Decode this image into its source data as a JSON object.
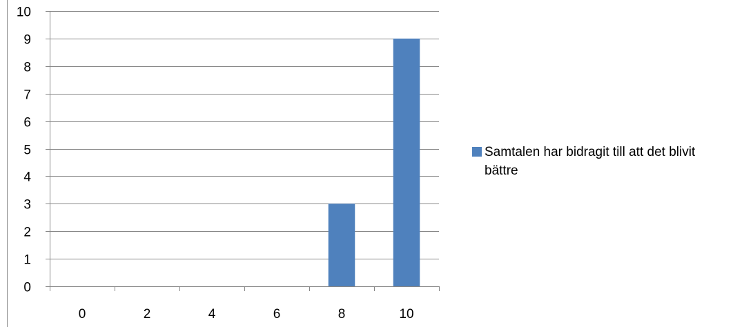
{
  "chart_data": {
    "type": "bar",
    "categories": [
      "0",
      "2",
      "4",
      "6",
      "8",
      "10"
    ],
    "series": [
      {
        "name": "Samtalen har bidragit till att det blivit bättre",
        "values": [
          0,
          0,
          0,
          0,
          3,
          9
        ],
        "color": "#4F81BD"
      }
    ],
    "yticks": [
      "0",
      "1",
      "2",
      "3",
      "4",
      "5",
      "6",
      "7",
      "8",
      "9",
      "10"
    ],
    "ylim": [
      0,
      10
    ],
    "grid": true,
    "legend_position": "right"
  }
}
